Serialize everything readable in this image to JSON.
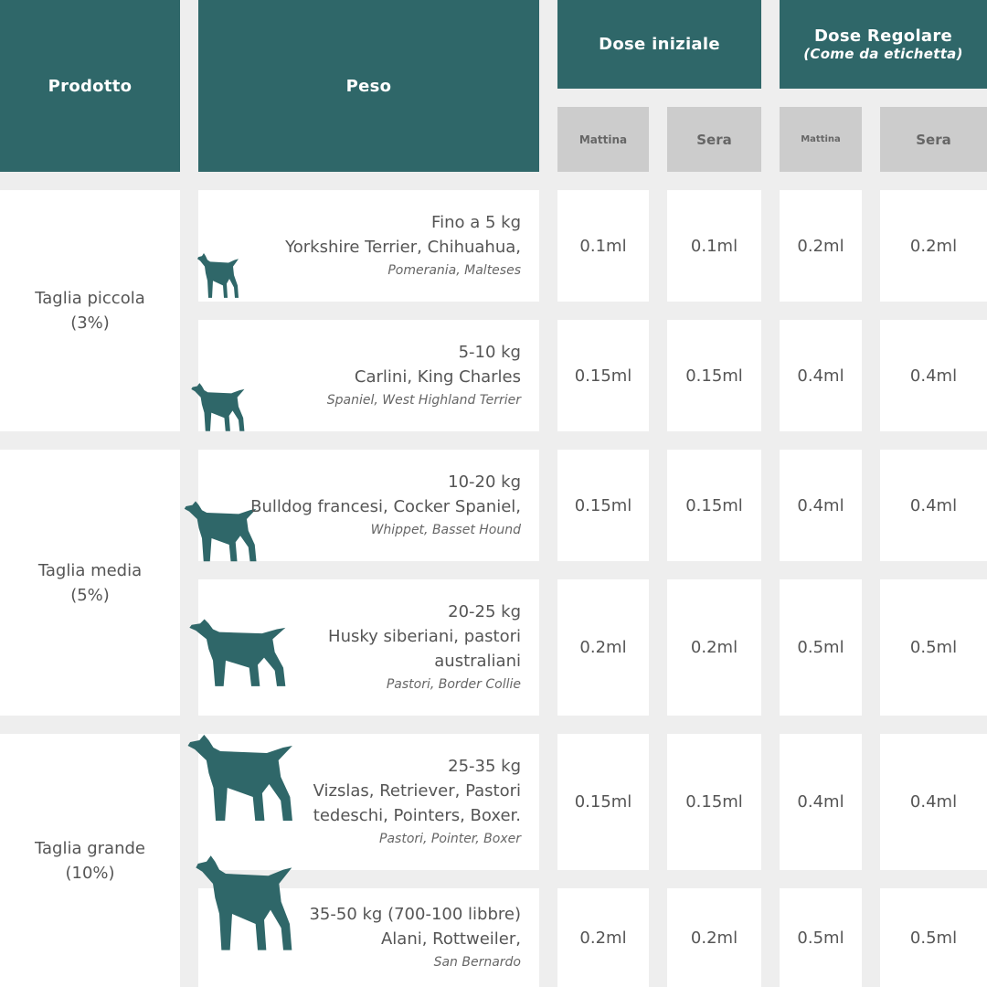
{
  "header": {
    "prodotto": "Prodotto",
    "peso": "Peso",
    "dose_iniziale": "Dose iniziale",
    "dose_regolare": "Dose Regolare",
    "dose_regolare_note": "(Come da etichetta)",
    "mattina": "Mattina",
    "sera": "Sera"
  },
  "colors": {
    "teal": "#2f6769",
    "subheader": "#cccccc",
    "background": "#eeeeee"
  },
  "groups": [
    {
      "name": "Taglia piccola",
      "pct": "(3%)"
    },
    {
      "name": "Taglia media",
      "pct": "(5%)"
    },
    {
      "name": "Taglia grande",
      "pct": "(10%)"
    }
  ],
  "rows": [
    {
      "lines": [
        "Fino a 5 kg",
        "Yorkshire Terrier, Chihuahua,"
      ],
      "italic": "Pomerania, Malteses",
      "icon": "chihuahua-icon",
      "doses": [
        "0.1ml",
        "0.1ml",
        "0.2ml",
        "0.2ml"
      ]
    },
    {
      "lines": [
        "5-10 kg",
        "Carlini, King Charles"
      ],
      "italic": "Spaniel, West Highland Terrier",
      "icon": "terrier-icon",
      "doses": [
        "0.15ml",
        "0.15ml",
        "0.4ml",
        "0.4ml"
      ]
    },
    {
      "lines": [
        "10-20 kg",
        "Bulldog francesi, Cocker Spaniel,"
      ],
      "italic": "Whippet, Basset Hound",
      "icon": "bulldog-icon",
      "doses": [
        "0.15ml",
        "0.15ml",
        "0.4ml",
        "0.4ml"
      ]
    },
    {
      "lines": [
        "20-25 kg",
        "Husky siberiani, pastori",
        "australiani"
      ],
      "italic": "Pastori, Border Collie",
      "icon": "collie-icon",
      "doses": [
        "0.2ml",
        "0.2ml",
        "0.5ml",
        "0.5ml"
      ]
    },
    {
      "lines": [
        "25-35 kg",
        "Vizslas, Retriever, Pastori",
        "tedeschi, Pointers, Boxer."
      ],
      "italic": "Pastori, Pointer, Boxer",
      "icon": "pointer-icon",
      "doses": [
        "0.15ml",
        "0.15ml",
        "0.4ml",
        "0.4ml"
      ]
    },
    {
      "lines": [
        "35-50 kg (700-100 libbre)",
        "Alani, Rottweiler,"
      ],
      "italic": "San Bernardo",
      "icon": "cane-corso-icon",
      "doses": [
        "0.2ml",
        "0.2ml",
        "0.5ml",
        "0.5ml"
      ]
    }
  ]
}
